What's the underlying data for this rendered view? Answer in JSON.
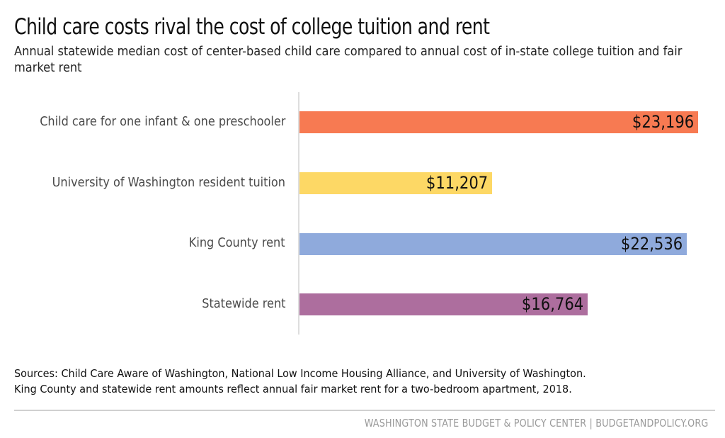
{
  "header": {
    "title": "Child care costs rival the cost of college tuition and rent",
    "subtitle": "Annual statewide median cost of center-based child care compared to annual cost of in-state college tuition and fair market rent"
  },
  "chart_data": {
    "type": "bar",
    "orientation": "horizontal",
    "title": "Child care costs rival the cost of college tuition and rent",
    "subtitle": "Annual statewide median cost of center-based child care compared to annual cost of in-state college tuition and fair market rent",
    "xlabel": "",
    "ylabel": "",
    "categories": [
      "Child care for one infant & one preschooler",
      "University of Washington resident tuition",
      "King County rent",
      "Statewide rent"
    ],
    "values": [
      23196,
      11207,
      22536,
      16764
    ],
    "value_labels": [
      "$23,196",
      "$11,207",
      "$22,536",
      "$16,764"
    ],
    "colors": [
      "#F77A52",
      "#FDD865",
      "#8FAADC",
      "#AD6E9E"
    ],
    "xlim": [
      0,
      23196
    ],
    "grid": false,
    "legend": "none"
  },
  "bars": [
    {
      "label": "Child care for one infant & one preschooler",
      "value_label": "$23,196",
      "color": "#F77A52"
    },
    {
      "label": "University of Washington resident tuition",
      "value_label": "$11,207",
      "color": "#FDD865"
    },
    {
      "label": "King County rent",
      "value_label": "$22,536",
      "color": "#8FAADC"
    },
    {
      "label": "Statewide rent",
      "value_label": "$16,764",
      "color": "#AD6E9E"
    }
  ],
  "notes": {
    "line1": "Sources: Child Care Aware of Washington, National Low Income Housing Alliance, and University of Washington.",
    "line2": "King County and statewide rent amounts reflect annual fair market rent for a two-bedroom apartment, 2018."
  },
  "footer": {
    "credit": "WASHINGTON STATE BUDGET & POLICY CENTER | BUDGETANDPOLICY.ORG"
  }
}
